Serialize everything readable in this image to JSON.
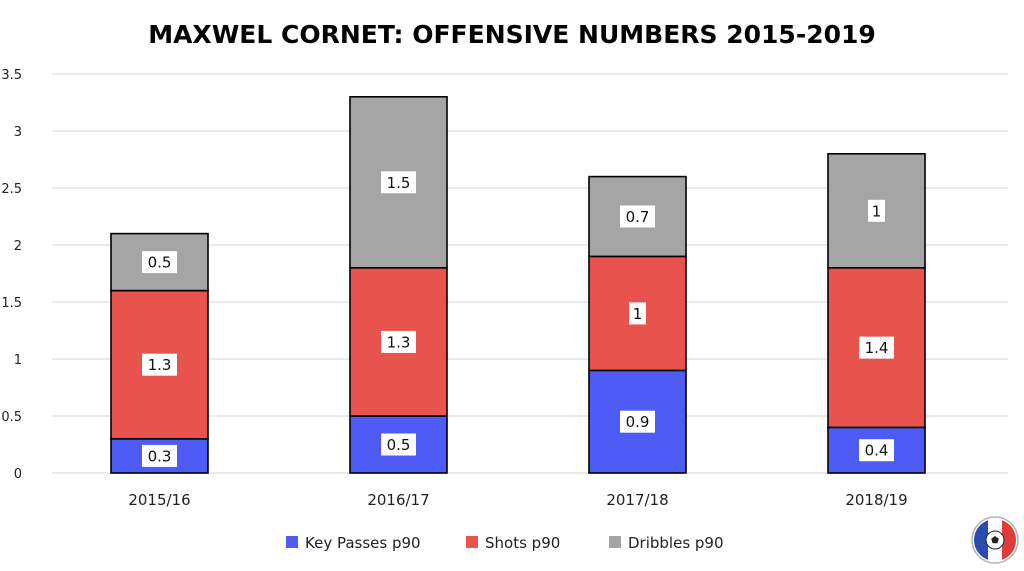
{
  "chart_data": {
    "type": "bar",
    "stacked": true,
    "title": "MAXWEL CORNET: OFFENSIVE NUMBERS 2015-2019",
    "categories": [
      "2015/16",
      "2016/17",
      "2017/18",
      "2018/19"
    ],
    "series": [
      {
        "name": "Key Passes p90",
        "values": [
          0.3,
          0.5,
          0.9,
          0.4
        ],
        "color": "#4f5bf5"
      },
      {
        "name": "Shots p90",
        "values": [
          1.3,
          1.3,
          1.0,
          1.4
        ],
        "color": "#e8534e"
      },
      {
        "name": "Dribbles p90",
        "values": [
          0.5,
          1.5,
          0.7,
          1.0
        ],
        "color": "#a5a5a5"
      }
    ],
    "data_labels": [
      [
        "0.3",
        "0.5",
        "0.9",
        "0.4"
      ],
      [
        "1.3",
        "1.3",
        "1",
        "1.4"
      ],
      [
        "0.5",
        "1.5",
        "0.7",
        "1"
      ]
    ],
    "y_ticks": [
      "0",
      "0.5",
      "1",
      "1.5",
      "2",
      "2.5",
      "3",
      "3.5"
    ],
    "ylim": [
      0,
      3.5
    ],
    "grid": true,
    "legend_position": "bottom"
  },
  "logo": {
    "icon": "french-football-logo-icon"
  }
}
